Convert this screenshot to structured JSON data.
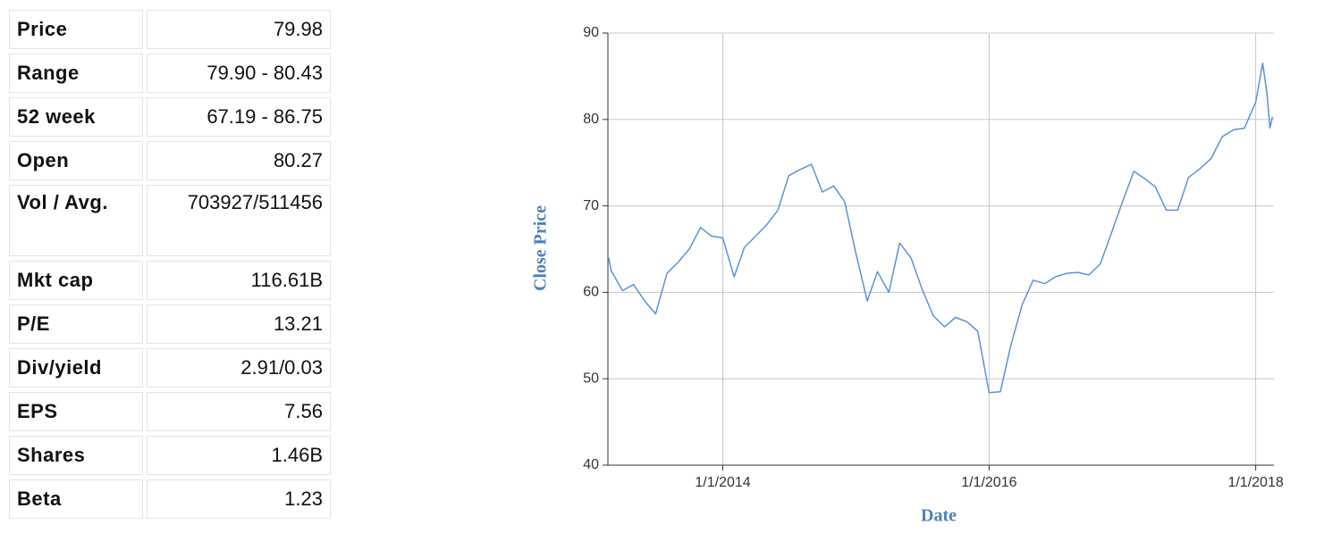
{
  "table": {
    "rows": [
      [
        "Price",
        "79.98"
      ],
      [
        "Range",
        "79.90 - 80.43"
      ],
      [
        "52 week",
        "67.19 - 86.75"
      ],
      [
        "Open",
        "80.27"
      ],
      [
        "Vol / Avg.",
        "703927/511456"
      ],
      [
        "Mkt cap",
        "116.61B"
      ],
      [
        "P/E",
        "13.21"
      ],
      [
        "Div/yield",
        "2.91/0.03"
      ],
      [
        "EPS",
        "7.56"
      ],
      [
        "Shares",
        "1.46B"
      ],
      [
        "Beta",
        "1.23"
      ]
    ]
  },
  "chart_data": {
    "type": "line",
    "x_label": "Date",
    "y_label": "Close Price",
    "color": "#5b93d6",
    "grid": true,
    "x": [
      "2/22/2013",
      "3/1/2013",
      "4/1/2013",
      "5/1/2013",
      "6/1/2013",
      "7/1/2013",
      "8/1/2013",
      "9/1/2013",
      "10/1/2013",
      "11/1/2013",
      "12/1/2013",
      "1/1/2014",
      "2/1/2014",
      "3/1/2014",
      "4/1/2014",
      "5/1/2014",
      "6/1/2014",
      "7/1/2014",
      "8/1/2014",
      "9/1/2014",
      "10/1/2014",
      "11/1/2014",
      "12/1/2014",
      "1/1/2015",
      "2/1/2015",
      "3/1/2015",
      "4/1/2015",
      "5/1/2015",
      "6/1/2015",
      "7/1/2015",
      "8/1/2015",
      "9/1/2015",
      "10/1/2015",
      "11/1/2015",
      "12/1/2015",
      "1/1/2016",
      "2/1/2016",
      "3/1/2016",
      "4/1/2016",
      "5/1/2016",
      "6/1/2016",
      "7/1/2016",
      "8/1/2016",
      "9/1/2016",
      "10/1/2016",
      "11/1/2016",
      "12/1/2016",
      "1/1/2017",
      "2/1/2017",
      "3/1/2017",
      "4/1/2017",
      "5/1/2017",
      "6/1/2017",
      "7/1/2017",
      "8/1/2017",
      "9/1/2017",
      "10/1/2017",
      "11/1/2017",
      "12/1/2017",
      "1/1/2018",
      "1/20/2018",
      "2/1/2018",
      "2/9/2018",
      "2/16/2018"
    ],
    "values": [
      64,
      62.5,
      60.2,
      60.9,
      59,
      57.5,
      62.2,
      63.5,
      65,
      67.5,
      66.5,
      66.3,
      61.8,
      65.2,
      66.5,
      67.8,
      69.5,
      73.5,
      74.2,
      74.8,
      71.6,
      72.3,
      70.5,
      64.5,
      59,
      62.4,
      60,
      65.7,
      64,
      60.4,
      57.3,
      56,
      57.1,
      56.6,
      55.5,
      48.4,
      48.5,
      53.9,
      58.6,
      61.4,
      61,
      61.8,
      62.2,
      62.3,
      62,
      63.3,
      66.8,
      70.5,
      74,
      73.2,
      72.2,
      69.5,
      69.5,
      73.3,
      74.3,
      75.5,
      78,
      78.8,
      79,
      82,
      86.5,
      83,
      79,
      80.3
    ],
    "xlim": [
      "2/20/2013",
      "2/20/2018"
    ],
    "xticks": [
      "1/1/2014",
      "1/1/2016",
      "1/1/2018"
    ],
    "ylim": [
      40,
      90
    ],
    "yticks": [
      40,
      50,
      60,
      70,
      80,
      90
    ]
  }
}
